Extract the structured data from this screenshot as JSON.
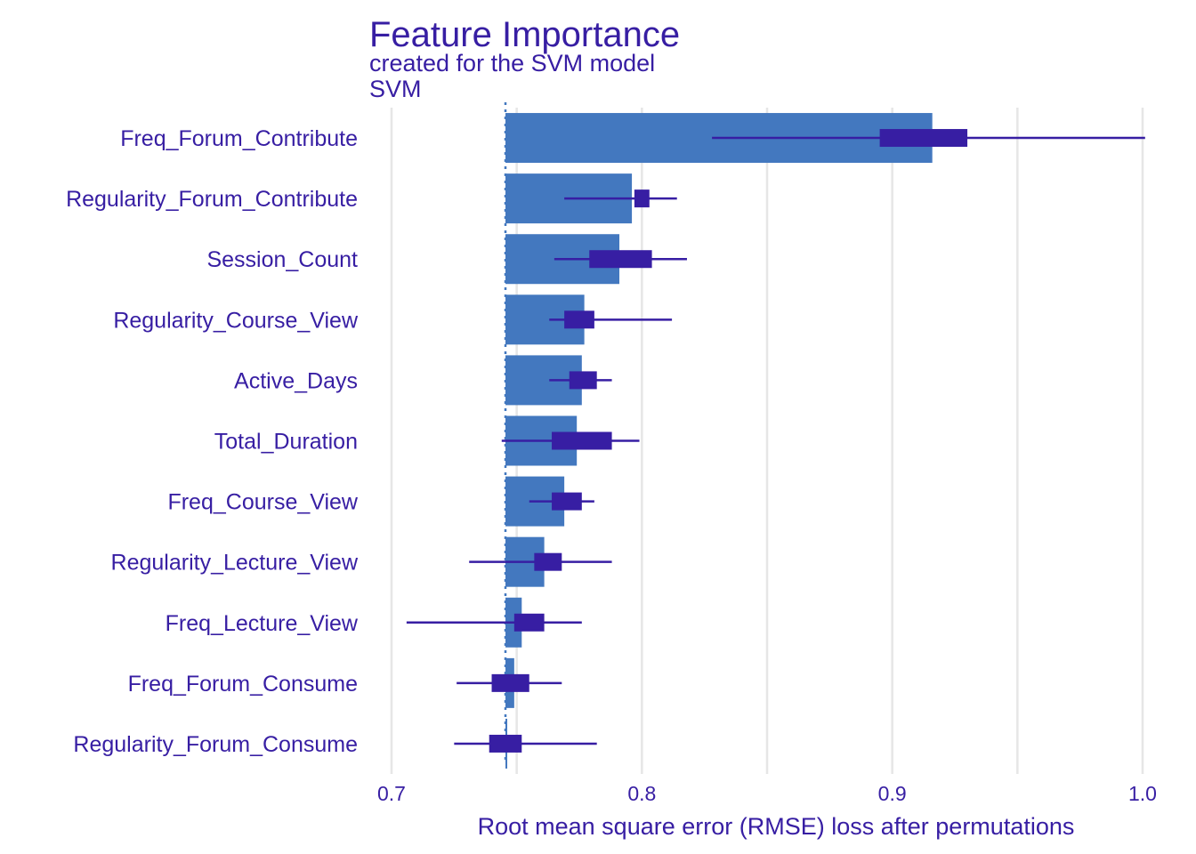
{
  "chart_data": {
    "type": "bar",
    "title": "Feature Importance",
    "subtitle": "created for the SVM model",
    "model_label": "SVM",
    "xlabel": "Root mean square error (RMSE) loss after permutations",
    "xlim": [
      0.7,
      1.0
    ],
    "xticks": [
      "0.7",
      "0.8",
      "0.9",
      "1.0"
    ],
    "baseline": 0.7455,
    "grid": true,
    "colors": {
      "bar": "#4378bf",
      "boxplot": "#371ea3",
      "text": "#371ea3",
      "grid": "#e6e6e6"
    },
    "series": [
      {
        "name": "Freq_Forum_Contribute",
        "value": 0.916,
        "min": 0.828,
        "q1": 0.895,
        "q3": 0.93,
        "max": 1.001
      },
      {
        "name": "Regularity_Forum_Contribute",
        "value": 0.796,
        "min": 0.769,
        "q1": 0.797,
        "q3": 0.803,
        "max": 0.814
      },
      {
        "name": "Session_Count",
        "value": 0.791,
        "min": 0.765,
        "q1": 0.779,
        "q3": 0.804,
        "max": 0.818
      },
      {
        "name": "Regularity_Course_View",
        "value": 0.777,
        "min": 0.763,
        "q1": 0.769,
        "q3": 0.781,
        "max": 0.812
      },
      {
        "name": "Active_Days",
        "value": 0.776,
        "min": 0.763,
        "q1": 0.771,
        "q3": 0.782,
        "max": 0.788
      },
      {
        "name": "Total_Duration",
        "value": 0.774,
        "min": 0.744,
        "q1": 0.764,
        "q3": 0.788,
        "max": 0.799
      },
      {
        "name": "Freq_Course_View",
        "value": 0.769,
        "min": 0.755,
        "q1": 0.764,
        "q3": 0.776,
        "max": 0.781
      },
      {
        "name": "Regularity_Lecture_View",
        "value": 0.761,
        "min": 0.731,
        "q1": 0.757,
        "q3": 0.768,
        "max": 0.788
      },
      {
        "name": "Freq_Lecture_View",
        "value": 0.752,
        "min": 0.706,
        "q1": 0.749,
        "q3": 0.761,
        "max": 0.776
      },
      {
        "name": "Freq_Forum_Consume",
        "value": 0.749,
        "min": 0.726,
        "q1": 0.74,
        "q3": 0.755,
        "max": 0.768
      },
      {
        "name": "Regularity_Forum_Consume",
        "value": 0.746,
        "min": 0.725,
        "q1": 0.739,
        "q3": 0.752,
        "max": 0.782
      }
    ]
  }
}
